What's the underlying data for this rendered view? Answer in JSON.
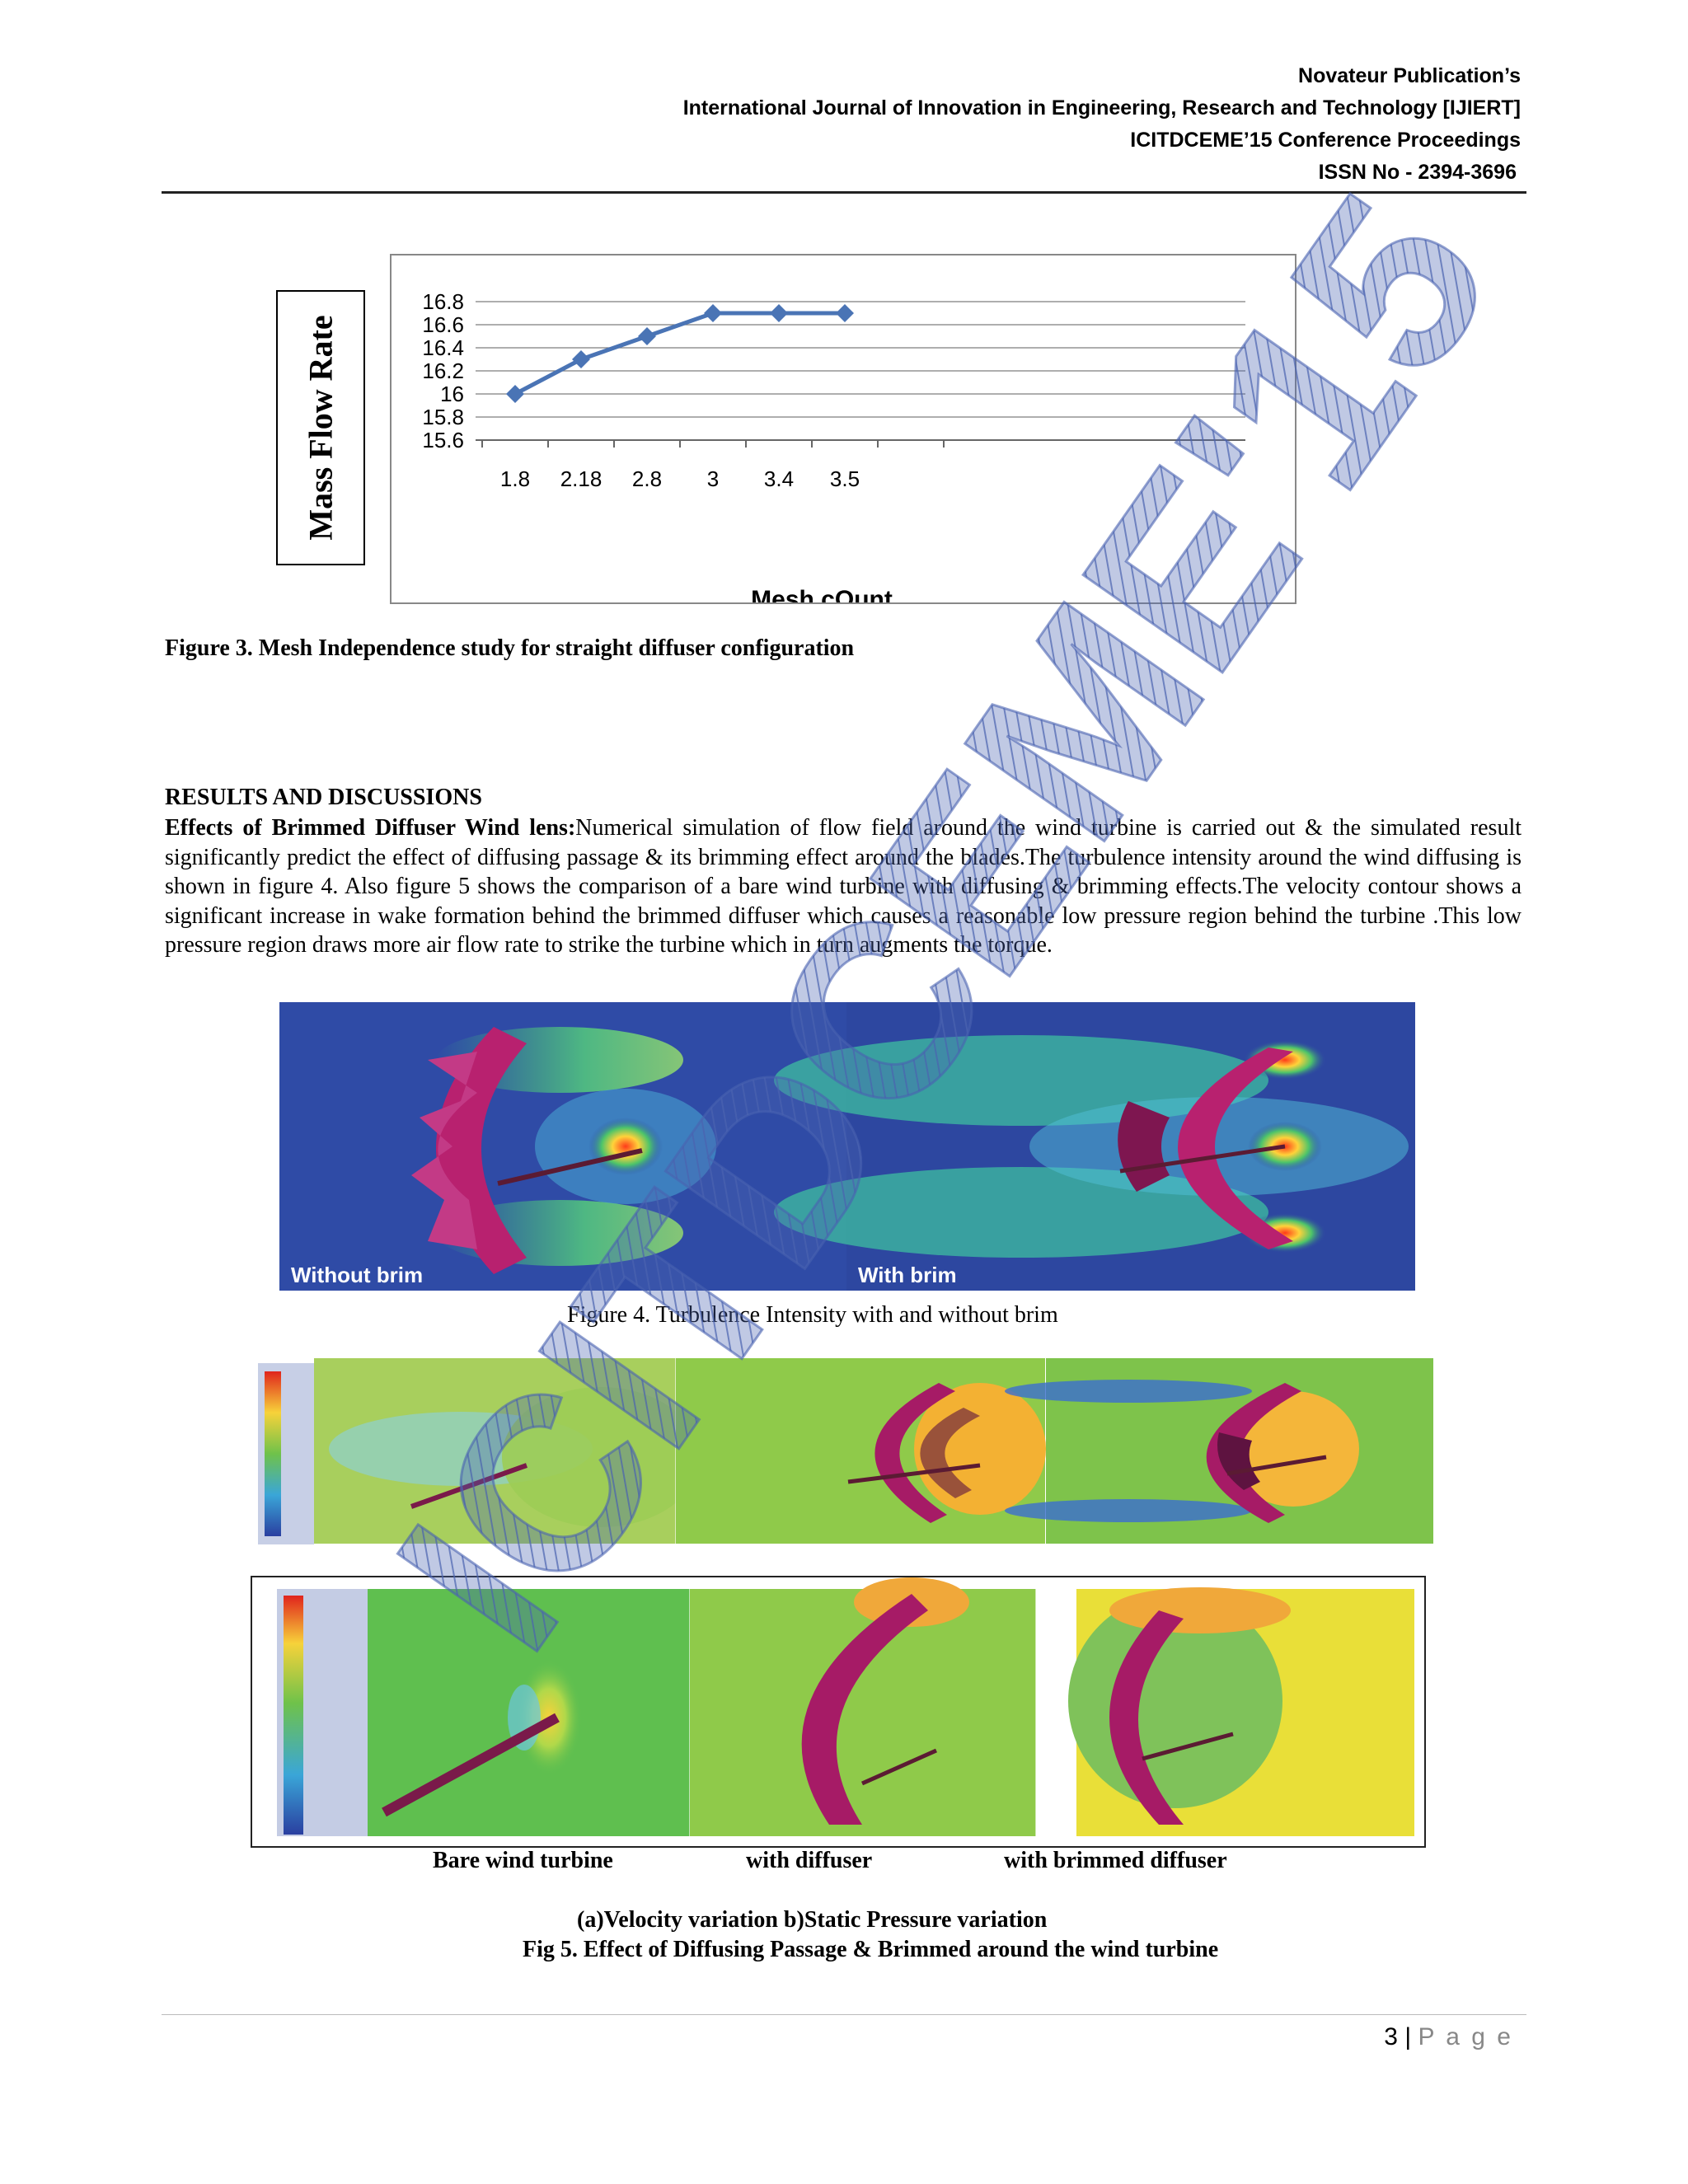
{
  "header": {
    "line1": "Novateur Publication’s",
    "line2": "International Journal of Innovation in Engineering, Research and Technology [IJIERT]",
    "line3": "ICITDCEME’15 Conference Proceedings",
    "line4": "ISSN No - 2394-3696"
  },
  "figure3": {
    "ylabel": "Mass Flow Rate",
    "xlabel": "Mesh cOunt",
    "caption": "Figure 3. Mesh Independence study for straight diffuser configuration"
  },
  "chart_data": {
    "type": "line",
    "title": "",
    "xlabel": "Mesh cOunt",
    "ylabel": "Mass Flow Rate",
    "categories": [
      "1.8",
      "2.18",
      "2.8",
      "3",
      "3.4",
      "3.5"
    ],
    "series": [
      {
        "values": [
          16.0,
          16.3,
          16.5,
          16.7,
          16.7,
          16.7
        ],
        "color": "#4a74b5"
      }
    ],
    "ylim": [
      15.6,
      16.8
    ],
    "yticks": [
      "16.8",
      "16.6",
      "16.4",
      "16.2",
      "16",
      "15.8",
      "15.6"
    ],
    "grid": true,
    "marker": "diamond"
  },
  "results": {
    "heading": "RESULTS AND DISCUSSIONS",
    "subheading": "Effects of Brimmed Diffuser Wind lens:",
    "paragraph": "Numerical simulation of flow field around the wind turbine is carried out & the simulated result significantly predict the effect  of diffusing passage & its brimming effect around the blades.The turbulence intensity around the wind diffusing is shown in figure 4. Also figure 5 shows the comparison of a bare wind turbine with diffusing & brimming effects.The velocity contour shows a significant increase in wake formation behind the brimmed diffuser which causes a reasonable low pressure region behind the turbine .This low pressure region draws more air flow rate to strike the turbine which in turn augments the torque."
  },
  "figure4": {
    "label_left": "Without brim",
    "label_right": "With brim",
    "caption": "Figure 4. Turbulence Intensity with and without brim"
  },
  "figure5": {
    "col1": "Bare wind turbine",
    "col2": "with diffuser",
    "col3": "with brimmed diffuser",
    "subcaption": "(a)Velocity variation b)Static Pressure variation",
    "caption": "Fig 5. Effect of Diffusing Passage & Brimmed around the wind turbine"
  },
  "footer": {
    "page_number": "3",
    "separator": "|",
    "page_word": "P a g e"
  },
  "colors": {
    "line": "#4a74b5",
    "watermark": "#4a63b0",
    "flow_blue": "#2e4aa3",
    "diffuser": "#b8216f"
  }
}
